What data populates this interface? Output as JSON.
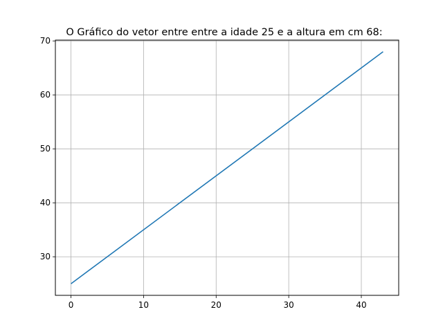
{
  "chart_data": {
    "type": "line",
    "title": "O Gráfico do vetor entre entre a idade 25 e a altura em cm 68:",
    "xlabel": "",
    "ylabel": "",
    "xlim": [
      -2.15,
      45.15
    ],
    "ylim": [
      22.85,
      70.15
    ],
    "xticks": [
      0,
      10,
      20,
      30,
      40
    ],
    "yticks": [
      30,
      40,
      50,
      60,
      70
    ],
    "grid": true,
    "legend": "none",
    "series": [
      {
        "x": [
          0,
          43
        ],
        "y": [
          25,
          68
        ],
        "color": "#1f77b4"
      }
    ]
  }
}
